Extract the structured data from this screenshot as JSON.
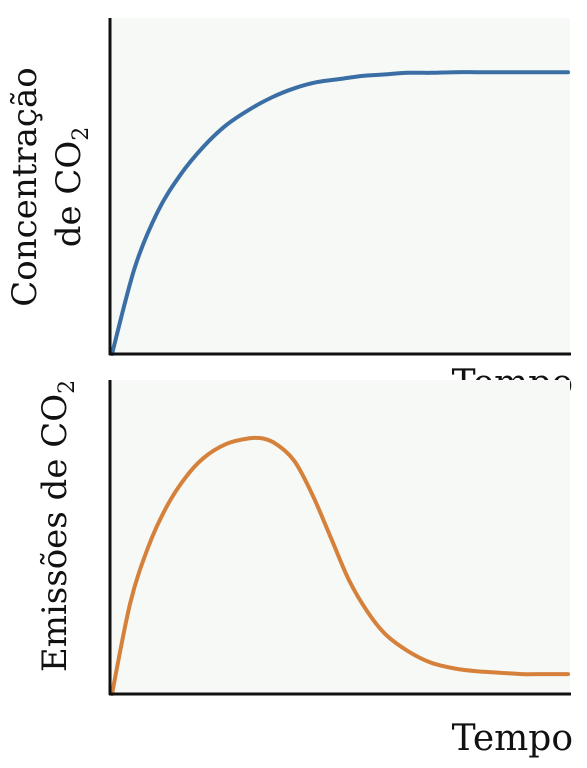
{
  "chart_data": [
    {
      "type": "line",
      "ylabel_line1": "Concentração",
      "ylabel_line2": "de CO",
      "ylabel_sub": "2",
      "xlabel": "Tempo",
      "color": "#3a6ea5",
      "background": "#f6f9f6",
      "xlim": [
        0,
        1
      ],
      "ylim": [
        0,
        1
      ],
      "grid": false,
      "x": [
        0,
        0.05,
        0.1,
        0.15,
        0.2,
        0.25,
        0.3,
        0.35,
        0.4,
        0.45,
        0.5,
        0.55,
        0.6,
        0.65,
        0.7,
        0.75,
        0.8,
        0.85,
        0.9,
        0.95,
        1.0
      ],
      "y": [
        0,
        0.28,
        0.46,
        0.58,
        0.67,
        0.74,
        0.79,
        0.83,
        0.86,
        0.88,
        0.89,
        0.9,
        0.905,
        0.91,
        0.91,
        0.912,
        0.912,
        0.912,
        0.912,
        0.912,
        0.912
      ]
    },
    {
      "type": "line",
      "ylabel": "Emissões de CO",
      "ylabel_sub": "2",
      "xlabel": "Tempo",
      "color": "#d6813b",
      "background": "#f6f9f6",
      "xlim": [
        0,
        1
      ],
      "ylim": [
        0,
        1
      ],
      "grid": false,
      "x": [
        0,
        0.04,
        0.08,
        0.12,
        0.16,
        0.2,
        0.25,
        0.3,
        0.33,
        0.36,
        0.4,
        0.44,
        0.48,
        0.52,
        0.56,
        0.6,
        0.65,
        0.7,
        0.75,
        0.8,
        0.85,
        0.9,
        0.95,
        1.0
      ],
      "y": [
        0,
        0.32,
        0.52,
        0.66,
        0.76,
        0.83,
        0.88,
        0.9,
        0.9,
        0.88,
        0.82,
        0.7,
        0.55,
        0.4,
        0.29,
        0.21,
        0.15,
        0.11,
        0.09,
        0.08,
        0.075,
        0.07,
        0.07,
        0.07
      ]
    }
  ]
}
